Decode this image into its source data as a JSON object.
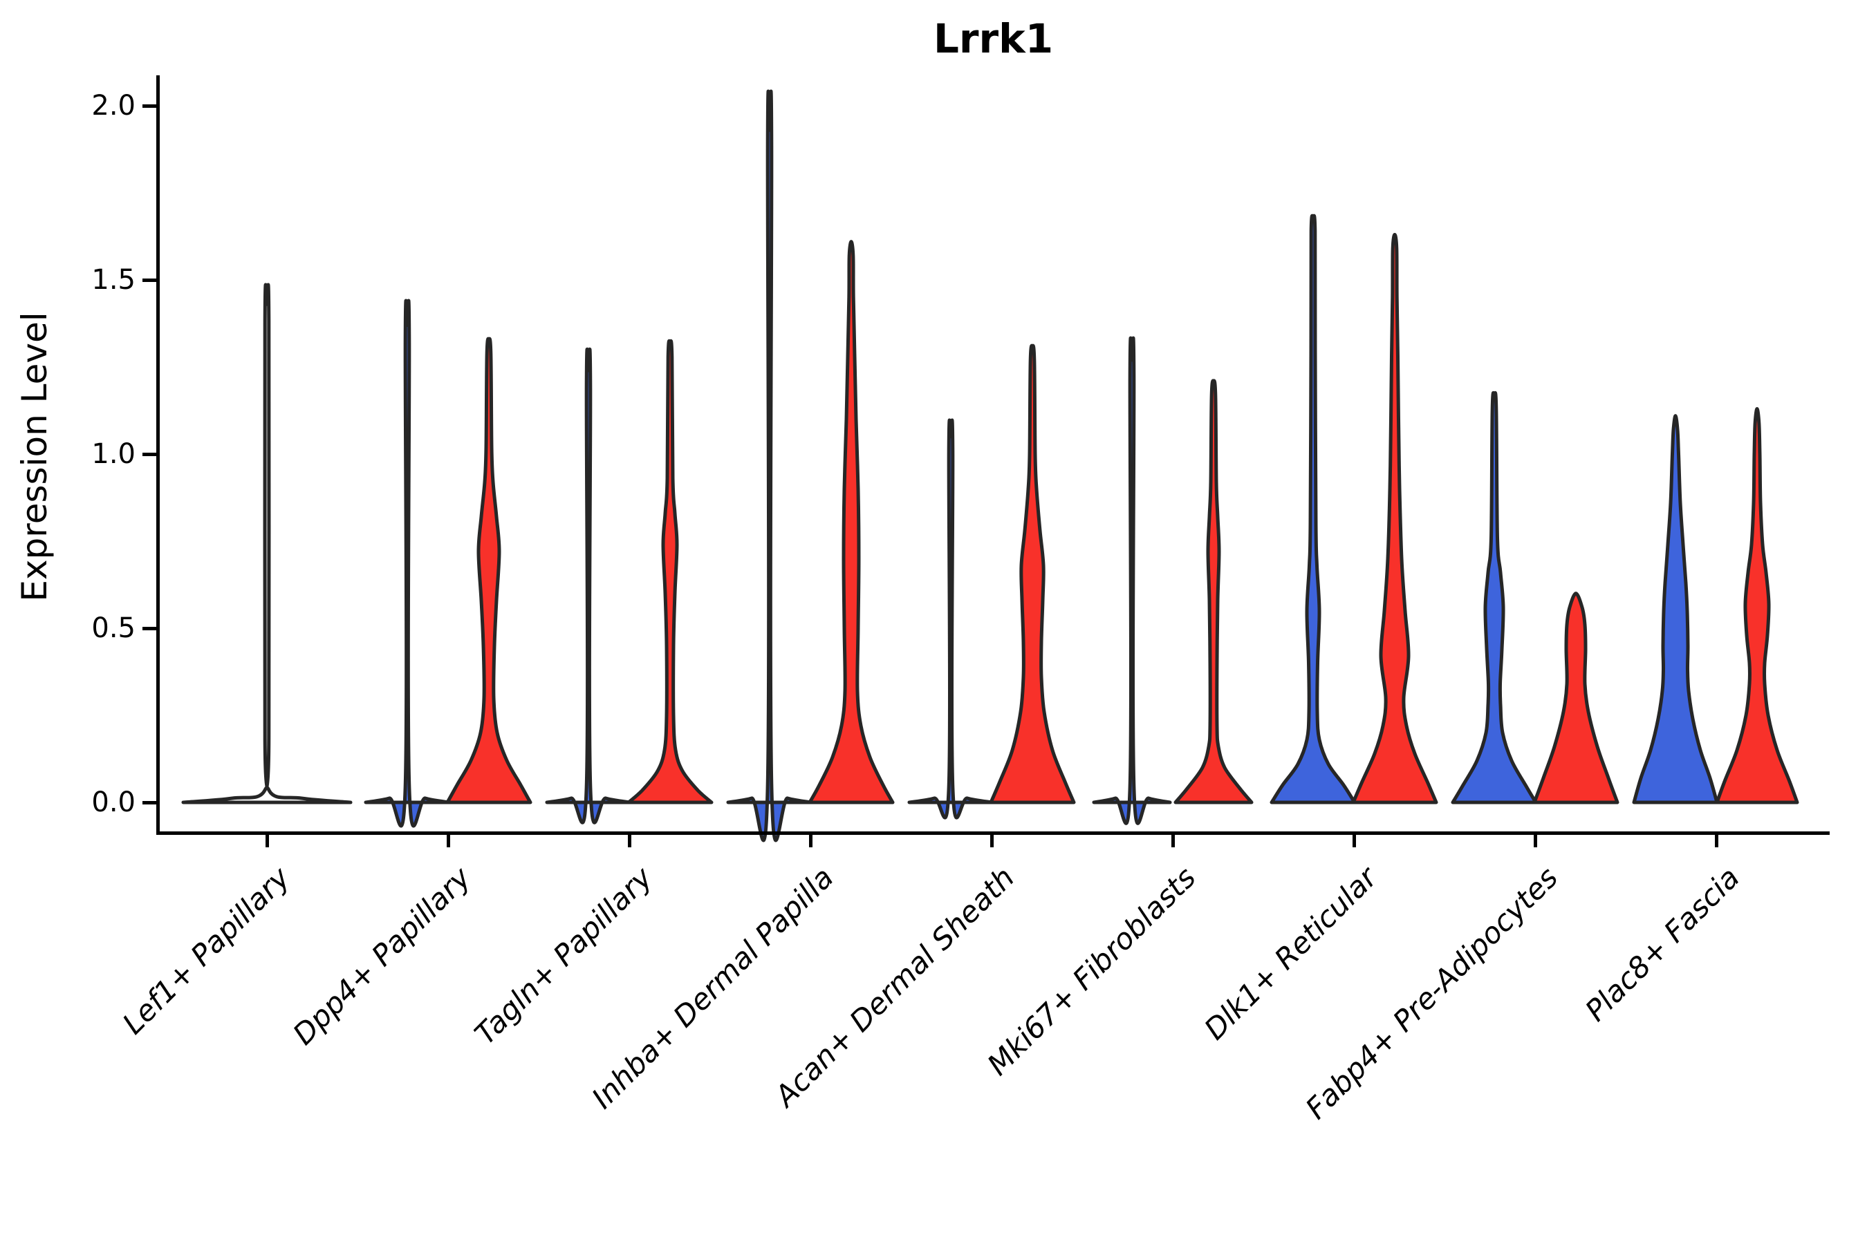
{
  "title": "Lrrk1",
  "ylabel": "Expression Level",
  "chart_data": {
    "type": "violin",
    "title": "Lrrk1",
    "ylabel": "Expression Level",
    "xlabel": "",
    "ylim": [
      0.0,
      2.0
    ],
    "ytick_labels": [
      "0.0",
      "0.5",
      "1.0",
      "1.5",
      "2.0"
    ],
    "ytick_values": [
      0.0,
      0.5,
      1.0,
      1.5,
      2.0
    ],
    "grid": false,
    "legend": "none",
    "colors": {
      "left_condition": "#3E64DC",
      "right_condition": "#F8312A",
      "outline": "#262626"
    },
    "categories": [
      {
        "label": "Lef1+ Papillary",
        "violins": [
          {
            "side": "center",
            "color": "none",
            "max_expression": 1.43,
            "profile": [
              [
                0,
                121
              ],
              [
                0.012,
                50
              ],
              [
                0.035,
                3
              ],
              [
                0.2,
                2.8
              ],
              [
                1.38,
                2.8
              ],
              [
                1.43,
                0
              ]
            ]
          }
        ]
      },
      {
        "label": "Dpp4+ Papillary",
        "violins": [
          {
            "side": "left",
            "color": "blue",
            "max_expression": 1.37,
            "profile": [
              [
                0,
                60
              ],
              [
                0.012,
                26
              ],
              [
                0.035,
                3
              ],
              [
                1.33,
                2.8
              ],
              [
                1.37,
                0
              ]
            ]
          },
          {
            "side": "right",
            "color": "red",
            "max_expression": 1.33,
            "profile": [
              [
                0,
                60
              ],
              [
                0.05,
                46
              ],
              [
                0.12,
                26
              ],
              [
                0.2,
                12
              ],
              [
                0.3,
                7
              ],
              [
                0.45,
                8
              ],
              [
                0.58,
                11
              ],
              [
                0.72,
                15
              ],
              [
                0.82,
                11
              ],
              [
                0.92,
                6
              ],
              [
                1.02,
                4
              ],
              [
                1.29,
                2.8
              ],
              [
                1.33,
                0
              ]
            ]
          }
        ]
      },
      {
        "label": "Tagln+ Papillary",
        "violins": [
          {
            "side": "left",
            "color": "blue",
            "max_expression": 1.24,
            "profile": [
              [
                0,
                60
              ],
              [
                0.012,
                25
              ],
              [
                0.035,
                3
              ],
              [
                1.2,
                2.8
              ],
              [
                1.24,
                0
              ]
            ]
          },
          {
            "side": "right",
            "color": "red",
            "max_expression": 1.32,
            "profile": [
              [
                0,
                60
              ],
              [
                0.035,
                40
              ],
              [
                0.09,
                18
              ],
              [
                0.15,
                8
              ],
              [
                0.25,
                5
              ],
              [
                0.45,
                5
              ],
              [
                0.6,
                7
              ],
              [
                0.74,
                10
              ],
              [
                0.83,
                7
              ],
              [
                0.93,
                4
              ],
              [
                1.28,
                2.8
              ],
              [
                1.32,
                0
              ]
            ]
          }
        ]
      },
      {
        "label": "Inhba+ Dermal Papilla",
        "violins": [
          {
            "side": "left",
            "color": "blue",
            "max_expression": 1.93,
            "profile": [
              [
                0,
                60
              ],
              [
                0.012,
                26
              ],
              [
                0.035,
                3
              ],
              [
                1.89,
                2.8
              ],
              [
                1.93,
                0
              ]
            ]
          },
          {
            "side": "right",
            "color": "red",
            "max_expression": 1.61,
            "profile": [
              [
                0,
                60
              ],
              [
                0.05,
                46
              ],
              [
                0.13,
                27
              ],
              [
                0.22,
                14
              ],
              [
                0.32,
                9
              ],
              [
                0.5,
                10
              ],
              [
                0.7,
                11
              ],
              [
                0.9,
                10
              ],
              [
                1.1,
                7
              ],
              [
                1.28,
                5
              ],
              [
                1.45,
                3.2
              ],
              [
                1.57,
                2.8
              ],
              [
                1.61,
                0
              ]
            ]
          }
        ]
      },
      {
        "label": "Acan+ Dermal Sheath",
        "violins": [
          {
            "side": "left",
            "color": "blue",
            "max_expression": 1.05,
            "profile": [
              [
                0,
                60
              ],
              [
                0.012,
                24
              ],
              [
                0.035,
                3
              ],
              [
                1.01,
                2.8
              ],
              [
                1.05,
                0
              ]
            ]
          },
          {
            "side": "right",
            "color": "red",
            "max_expression": 1.31,
            "profile": [
              [
                0,
                60
              ],
              [
                0.06,
                47
              ],
              [
                0.15,
                29
              ],
              [
                0.26,
                17
              ],
              [
                0.36,
                13
              ],
              [
                0.46,
                13
              ],
              [
                0.58,
                15
              ],
              [
                0.68,
                16
              ],
              [
                0.78,
                11
              ],
              [
                0.9,
                6
              ],
              [
                1.0,
                4
              ],
              [
                1.27,
                2.8
              ],
              [
                1.31,
                0
              ]
            ]
          }
        ]
      },
      {
        "label": "Mki67+ Fibroblasts",
        "violins": [
          {
            "side": "left",
            "color": "blue",
            "max_expression": 1.27,
            "profile": [
              [
                0,
                55
              ],
              [
                0.012,
                24
              ],
              [
                0.035,
                3
              ],
              [
                1.23,
                2.8
              ],
              [
                1.27,
                0
              ]
            ]
          },
          {
            "side": "right",
            "color": "red",
            "max_expression": 1.21,
            "profile": [
              [
                0,
                55
              ],
              [
                0.04,
                38
              ],
              [
                0.1,
                16
              ],
              [
                0.16,
                7
              ],
              [
                0.22,
                5
              ],
              [
                0.4,
                5
              ],
              [
                0.58,
                6
              ],
              [
                0.72,
                8
              ],
              [
                0.82,
                6
              ],
              [
                0.92,
                4
              ],
              [
                1.17,
                2.8
              ],
              [
                1.21,
                0
              ]
            ]
          }
        ]
      },
      {
        "label": "Dlk1+ Reticular",
        "violins": [
          {
            "side": "left",
            "color": "blue",
            "max_expression": 1.68,
            "profile": [
              [
                0,
                60
              ],
              [
                0.05,
                44
              ],
              [
                0.11,
                22
              ],
              [
                0.18,
                9
              ],
              [
                0.26,
                6
              ],
              [
                0.4,
                6.5
              ],
              [
                0.55,
                9
              ],
              [
                0.68,
                5.5
              ],
              [
                0.8,
                4
              ],
              [
                1.3,
                3
              ],
              [
                1.64,
                2.8
              ],
              [
                1.68,
                0
              ]
            ]
          },
          {
            "side": "right",
            "color": "red",
            "max_expression": 1.63,
            "profile": [
              [
                0,
                60
              ],
              [
                0.06,
                47
              ],
              [
                0.14,
                29
              ],
              [
                0.22,
                17
              ],
              [
                0.3,
                13
              ],
              [
                0.42,
                20
              ],
              [
                0.55,
                15
              ],
              [
                0.7,
                10
              ],
              [
                0.9,
                7
              ],
              [
                1.1,
                5.5
              ],
              [
                1.28,
                4.5
              ],
              [
                1.45,
                3.2
              ],
              [
                1.59,
                2.8
              ],
              [
                1.63,
                0
              ]
            ]
          }
        ]
      },
      {
        "label": "Fabp4+ Pre-Adipocytes",
        "violins": [
          {
            "side": "left",
            "color": "blue",
            "max_expression": 1.17,
            "profile": [
              [
                0,
                60
              ],
              [
                0.05,
                45
              ],
              [
                0.12,
                25
              ],
              [
                0.2,
                12
              ],
              [
                0.28,
                9
              ],
              [
                0.34,
                8.5
              ],
              [
                0.44,
                11
              ],
              [
                0.56,
                13
              ],
              [
                0.66,
                9
              ],
              [
                0.76,
                4.5
              ],
              [
                1.13,
                2.8
              ],
              [
                1.17,
                0
              ]
            ]
          },
          {
            "side": "right",
            "color": "red",
            "max_expression": 0.6,
            "profile": [
              [
                0,
                60
              ],
              [
                0.07,
                47
              ],
              [
                0.16,
                31
              ],
              [
                0.26,
                18
              ],
              [
                0.34,
                13
              ],
              [
                0.44,
                14
              ],
              [
                0.51,
                13
              ],
              [
                0.56,
                9
              ],
              [
                0.6,
                0
              ]
            ]
          }
        ]
      },
      {
        "label": "Plac8+ Fascia",
        "violins": [
          {
            "side": "left",
            "color": "blue",
            "max_expression": 1.11,
            "profile": [
              [
                0,
                60
              ],
              [
                0.07,
                50
              ],
              [
                0.15,
                36
              ],
              [
                0.24,
                25
              ],
              [
                0.32,
                19
              ],
              [
                0.38,
                17.5
              ],
              [
                0.45,
                18
              ],
              [
                0.55,
                17
              ],
              [
                0.63,
                15
              ],
              [
                0.74,
                11
              ],
              [
                0.86,
                7
              ],
              [
                1.0,
                4.5
              ],
              [
                1.07,
                3
              ],
              [
                1.11,
                0
              ]
            ]
          },
          {
            "side": "right",
            "color": "red",
            "max_expression": 1.13,
            "profile": [
              [
                0,
                58
              ],
              [
                0.06,
                47
              ],
              [
                0.15,
                29
              ],
              [
                0.25,
                16
              ],
              [
                0.34,
                11
              ],
              [
                0.4,
                11
              ],
              [
                0.48,
                15
              ],
              [
                0.57,
                17
              ],
              [
                0.66,
                13
              ],
              [
                0.74,
                8
              ],
              [
                0.86,
                5
              ],
              [
                1.0,
                4
              ],
              [
                1.09,
                2.8
              ],
              [
                1.13,
                0
              ]
            ]
          }
        ]
      }
    ]
  }
}
